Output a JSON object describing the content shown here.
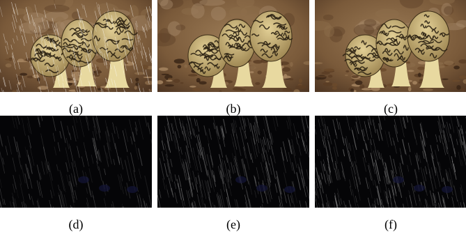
{
  "figure": {
    "panels": [
      {
        "id": "a",
        "caption": "(a)",
        "kind": "rainy-input"
      },
      {
        "id": "b",
        "caption": "(b)",
        "kind": "derained-output"
      },
      {
        "id": "c",
        "caption": "(c)",
        "kind": "derained-output"
      },
      {
        "id": "d",
        "caption": "(d)",
        "kind": "rain-residual"
      },
      {
        "id": "e",
        "caption": "(e)",
        "kind": "rain-residual"
      },
      {
        "id": "f",
        "caption": "(f)",
        "kind": "rain-residual"
      }
    ]
  },
  "colors": {
    "background": "#7a5a3a",
    "mushroom_cap": "#c9b27a",
    "mushroom_ridge": "#2e2414",
    "stem": "#e8d9a0",
    "residual_bg": "#050507",
    "streak": "#9a9a9a"
  }
}
